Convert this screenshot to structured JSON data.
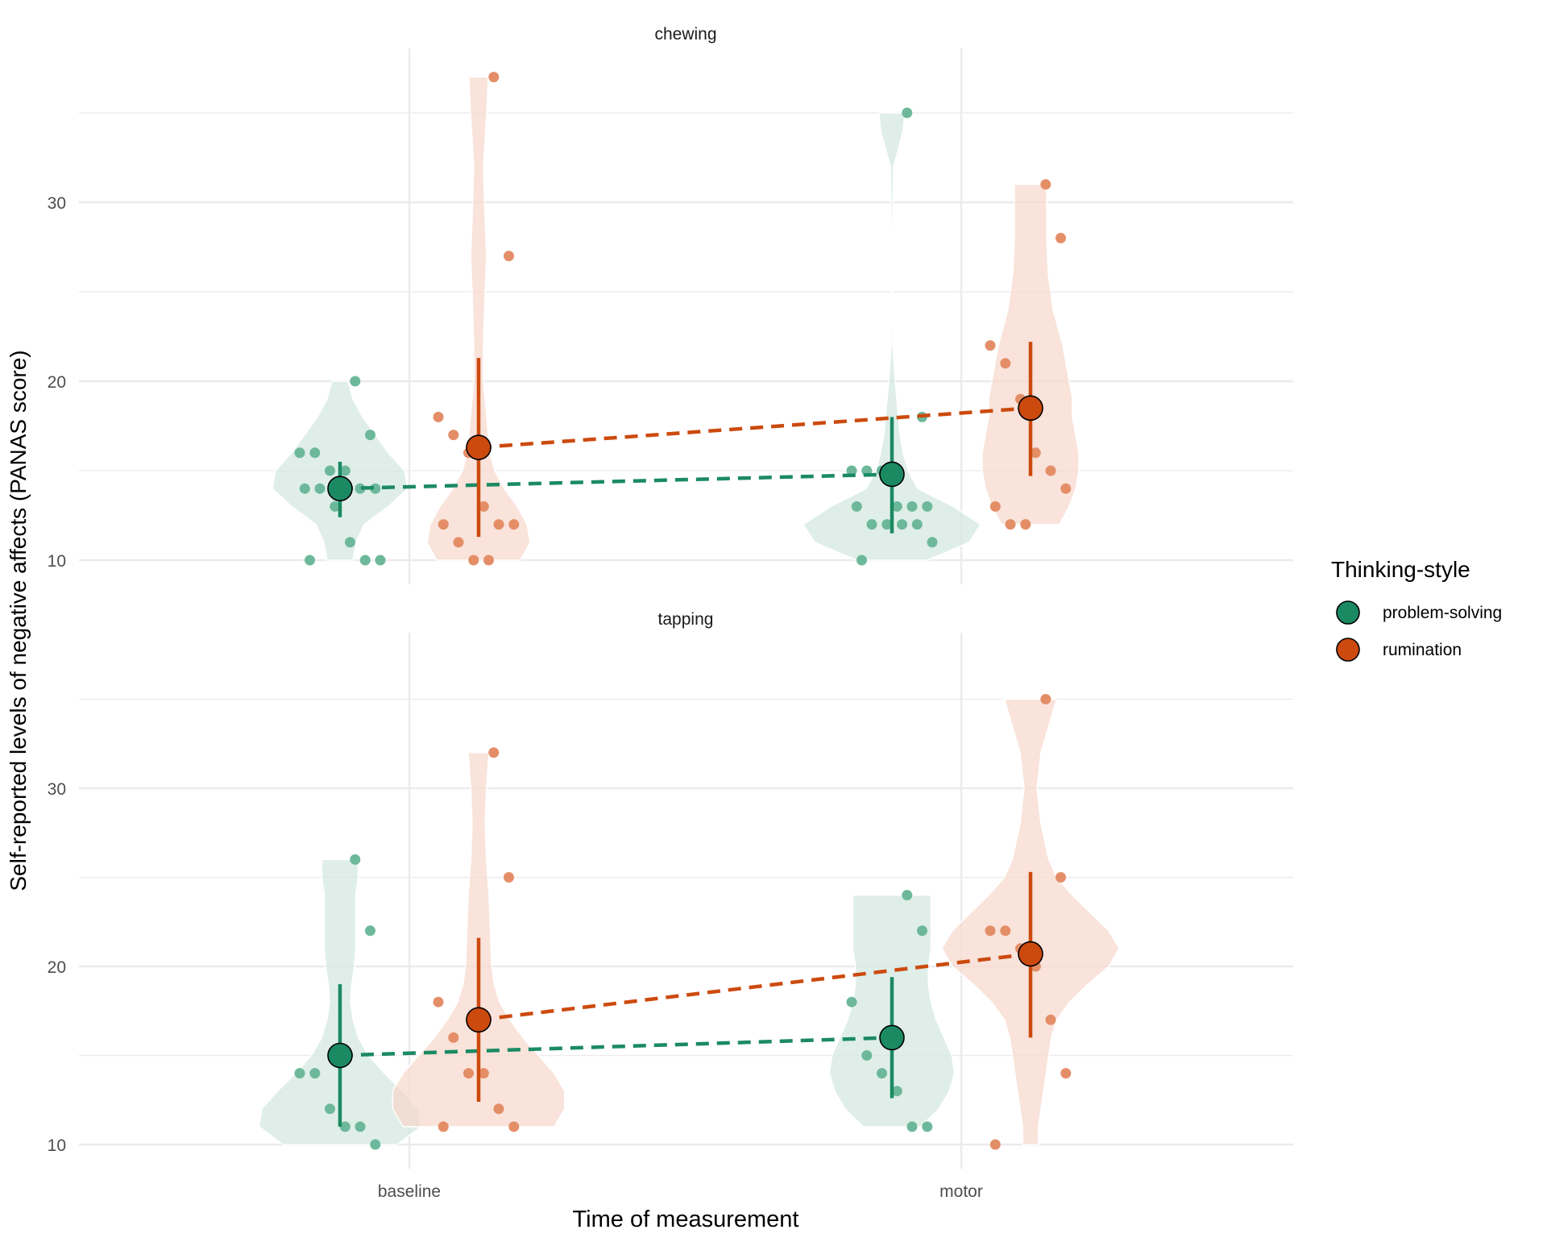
{
  "chart_data": {
    "type": "violin",
    "ylabel": "Self-reported levels of negative affects (PANAS score)",
    "xlabel": "Time of measurement",
    "categories": [
      "baseline",
      "motor"
    ],
    "yticks": [
      10,
      20,
      30
    ],
    "ylim": [
      8.7,
      39.2
    ],
    "grid": true,
    "legend": {
      "title": "Thinking-style",
      "position": "right",
      "entries": [
        {
          "label": "problem-solving",
          "color": "#1b8a63"
        },
        {
          "label": "rumination",
          "color": "#cc4a0e"
        }
      ]
    },
    "colors": {
      "problem-solving": {
        "point": "#1b8a63",
        "violin": "#d3e8e0",
        "jitter": "#6db89b"
      },
      "rumination": {
        "point": "#cc4a0e",
        "violin": "#f6d8cc",
        "jitter": "#e48e68"
      }
    },
    "panels": [
      {
        "title": "chewing",
        "series": [
          {
            "name": "problem-solving",
            "groups": [
              {
                "category": "baseline",
                "mean": 14.0,
                "lower": 12.4,
                "upper": 15.5,
                "points": [
                  20,
                  17,
                  16,
                  16,
                  15,
                  15,
                  14,
                  14,
                  14,
                  14,
                  13,
                  11,
                  10,
                  10,
                  10
                ],
                "violin": [
                  [
                    10,
                    8
                  ],
                  [
                    11,
                    10
                  ],
                  [
                    12,
                    15
                  ],
                  [
                    13,
                    30
                  ],
                  [
                    14,
                    42
                  ],
                  [
                    15,
                    40
                  ],
                  [
                    16,
                    30
                  ],
                  [
                    17,
                    22
                  ],
                  [
                    18,
                    14
                  ],
                  [
                    19,
                    8
                  ],
                  [
                    20,
                    5
                  ]
                ]
              },
              {
                "category": "motor",
                "mean": 14.8,
                "lower": 11.5,
                "upper": 18.0,
                "points": [
                  35,
                  18,
                  15,
                  15,
                  15,
                  13,
                  13,
                  13,
                  13,
                  12,
                  12,
                  12,
                  12,
                  11,
                  10
                ],
                "violin": [
                  [
                    10,
                    22
                  ],
                  [
                    11,
                    48
                  ],
                  [
                    12,
                    55
                  ],
                  [
                    13,
                    38
                  ],
                  [
                    14,
                    16
                  ],
                  [
                    15,
                    10
                  ],
                  [
                    16,
                    7
                  ],
                  [
                    17,
                    5
                  ],
                  [
                    18,
                    4
                  ],
                  [
                    19,
                    3
                  ],
                  [
                    20,
                    2
                  ],
                  [
                    22,
                    0.5
                  ],
                  [
                    24,
                    0.3
                  ],
                  [
                    28,
                    0.3
                  ],
                  [
                    32,
                    1
                  ],
                  [
                    33,
                    4
                  ],
                  [
                    34,
                    7
                  ],
                  [
                    35,
                    8
                  ]
                ]
              }
            ]
          },
          {
            "name": "rumination",
            "groups": [
              {
                "category": "baseline",
                "mean": 16.3,
                "lower": 11.3,
                "upper": 21.3,
                "points": [
                  37,
                  27,
                  18,
                  17,
                  16,
                  13,
                  12,
                  12,
                  12,
                  11,
                  10,
                  10
                ],
                "violin": [
                  [
                    10,
                    26
                  ],
                  [
                    11,
                    32
                  ],
                  [
                    12,
                    30
                  ],
                  [
                    13,
                    24
                  ],
                  [
                    14,
                    16
                  ],
                  [
                    15,
                    10
                  ],
                  [
                    16,
                    7
                  ],
                  [
                    18,
                    5
                  ],
                  [
                    20,
                    3
                  ],
                  [
                    22,
                    3
                  ],
                  [
                    25,
                    4
                  ],
                  [
                    27,
                    5
                  ],
                  [
                    29,
                    4
                  ],
                  [
                    32,
                    3
                  ],
                  [
                    35,
                    5
                  ],
                  [
                    37,
                    6
                  ]
                ]
              },
              {
                "category": "motor",
                "mean": 18.5,
                "lower": 14.7,
                "upper": 22.2,
                "points": [
                  31,
                  28,
                  22,
                  21,
                  19,
                  16,
                  15,
                  14,
                  13,
                  12,
                  12
                ],
                "violin": [
                  [
                    12,
                    18
                  ],
                  [
                    13,
                    24
                  ],
                  [
                    14,
                    28
                  ],
                  [
                    15,
                    30
                  ],
                  [
                    16,
                    30
                  ],
                  [
                    17,
                    28
                  ],
                  [
                    18,
                    26
                  ],
                  [
                    19,
                    26
                  ],
                  [
                    20,
                    24
                  ],
                  [
                    21,
                    22
                  ],
                  [
                    22,
                    20
                  ],
                  [
                    24,
                    14
                  ],
                  [
                    26,
                    11
                  ],
                  [
                    28,
                    10
                  ],
                  [
                    30,
                    10
                  ],
                  [
                    31,
                    10
                  ]
                ]
              }
            ]
          }
        ]
      },
      {
        "title": "tapping",
        "series": [
          {
            "name": "problem-solving",
            "groups": [
              {
                "category": "baseline",
                "mean": 15.0,
                "lower": 11.0,
                "upper": 19.0,
                "points": [
                  26,
                  22,
                  14,
                  14,
                  12,
                  11,
                  11,
                  10
                ],
                "violin": [
                  [
                    10,
                    44
                  ],
                  [
                    11,
                    62
                  ],
                  [
                    12,
                    60
                  ],
                  [
                    13,
                    48
                  ],
                  [
                    14,
                    34
                  ],
                  [
                    15,
                    22
                  ],
                  [
                    16,
                    14
                  ],
                  [
                    17,
                    10
                  ],
                  [
                    18,
                    8
                  ],
                  [
                    19,
                    9
                  ],
                  [
                    20,
                    11
                  ],
                  [
                    21,
                    12
                  ],
                  [
                    22,
                    12
                  ],
                  [
                    23,
                    12
                  ],
                  [
                    24,
                    12
                  ],
                  [
                    25,
                    14
                  ],
                  [
                    26,
                    14
                  ]
                ]
              },
              {
                "category": "motor",
                "mean": 16.0,
                "lower": 12.6,
                "upper": 19.4,
                "points": [
                  24,
                  22,
                  18,
                  15,
                  14,
                  13,
                  11,
                  11
                ],
                "violin": [
                  [
                    11,
                    22
                  ],
                  [
                    12,
                    36
                  ],
                  [
                    13,
                    44
                  ],
                  [
                    14,
                    48
                  ],
                  [
                    15,
                    46
                  ],
                  [
                    16,
                    40
                  ],
                  [
                    17,
                    34
                  ],
                  [
                    18,
                    30
                  ],
                  [
                    19,
                    28
                  ],
                  [
                    20,
                    28
                  ],
                  [
                    21,
                    30
                  ],
                  [
                    22,
                    30
                  ],
                  [
                    23,
                    30
                  ],
                  [
                    24,
                    30
                  ]
                ]
              }
            ]
          },
          {
            "name": "rumination",
            "groups": [
              {
                "category": "baseline",
                "mean": 17.0,
                "lower": 12.4,
                "upper": 21.6,
                "points": [
                  32,
                  25,
                  18,
                  16,
                  14,
                  14,
                  12,
                  11,
                  11
                ],
                "violin": [
                  [
                    11,
                    58
                  ],
                  [
                    12,
                    66
                  ],
                  [
                    13,
                    66
                  ],
                  [
                    14,
                    58
                  ],
                  [
                    15,
                    46
                  ],
                  [
                    16,
                    34
                  ],
                  [
                    17,
                    24
                  ],
                  [
                    18,
                    16
                  ],
                  [
                    19,
                    12
                  ],
                  [
                    20,
                    10
                  ],
                  [
                    22,
                    9
                  ],
                  [
                    24,
                    8
                  ],
                  [
                    26,
                    6
                  ],
                  [
                    28,
                    5
                  ],
                  [
                    30,
                    6
                  ],
                  [
                    32,
                    8
                  ]
                ]
              },
              {
                "category": "motor",
                "mean": 20.7,
                "lower": 16.0,
                "upper": 25.3,
                "points": [
                  35,
                  25,
                  22,
                  22,
                  21,
                  20,
                  17,
                  14,
                  10
                ],
                "violin": [
                  [
                    10,
                    6
                  ],
                  [
                    11,
                    6
                  ],
                  [
                    12,
                    8
                  ],
                  [
                    13,
                    10
                  ],
                  [
                    14,
                    12
                  ],
                  [
                    15,
                    14
                  ],
                  [
                    16,
                    16
                  ],
                  [
                    17,
                    20
                  ],
                  [
                    18,
                    30
                  ],
                  [
                    19,
                    44
                  ],
                  [
                    20,
                    60
                  ],
                  [
                    21,
                    68
                  ],
                  [
                    22,
                    60
                  ],
                  [
                    23,
                    46
                  ],
                  [
                    24,
                    32
                  ],
                  [
                    25,
                    20
                  ],
                  [
                    26,
                    14
                  ],
                  [
                    28,
                    8
                  ],
                  [
                    30,
                    5
                  ],
                  [
                    32,
                    8
                  ],
                  [
                    34,
                    16
                  ],
                  [
                    35,
                    20
                  ]
                ]
              }
            ]
          }
        ]
      }
    ]
  }
}
